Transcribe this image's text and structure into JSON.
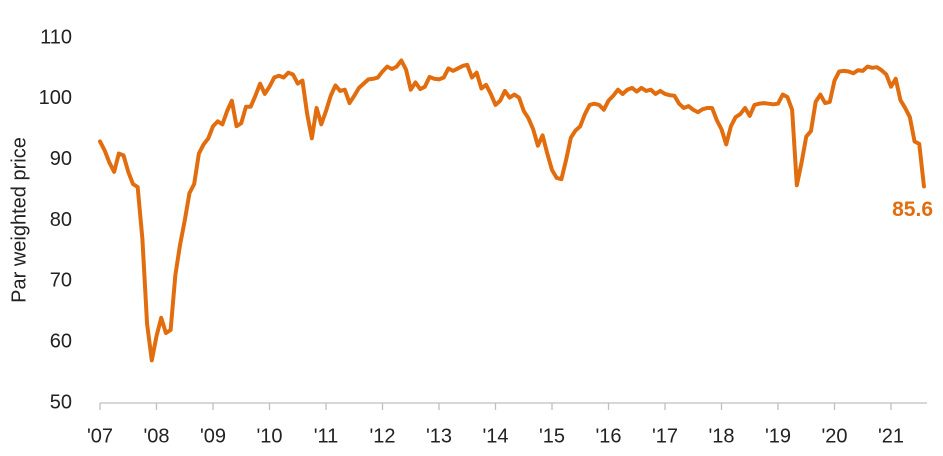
{
  "chart_data": {
    "type": "line",
    "y_label": "Par weighted price",
    "categories": [
      "'07",
      null,
      null,
      null,
      null,
      null,
      null,
      null,
      null,
      null,
      null,
      null,
      "'08",
      null,
      null,
      null,
      null,
      null,
      null,
      null,
      null,
      null,
      null,
      null,
      "'09",
      null,
      null,
      null,
      null,
      null,
      null,
      null,
      null,
      null,
      null,
      null,
      "'10",
      null,
      null,
      null,
      null,
      null,
      null,
      null,
      null,
      null,
      null,
      null,
      "'11",
      null,
      null,
      null,
      null,
      null,
      null,
      null,
      null,
      null,
      null,
      null,
      "'12",
      null,
      null,
      null,
      null,
      null,
      null,
      null,
      null,
      null,
      null,
      null,
      "'13",
      null,
      null,
      null,
      null,
      null,
      null,
      null,
      null,
      null,
      null,
      null,
      "'14",
      null,
      null,
      null,
      null,
      null,
      null,
      null,
      null,
      null,
      null,
      null,
      "'15",
      null,
      null,
      null,
      null,
      null,
      null,
      null,
      null,
      null,
      null,
      null,
      "'16",
      null,
      null,
      null,
      null,
      null,
      null,
      null,
      null,
      null,
      null,
      null,
      "'17",
      null,
      null,
      null,
      null,
      null,
      null,
      null,
      null,
      null,
      null,
      null,
      "'18",
      null,
      null,
      null,
      null,
      null,
      null,
      null,
      null,
      null,
      null,
      null,
      "'19",
      null,
      null,
      null,
      null,
      null,
      null,
      null,
      null,
      null,
      null,
      null,
      "'20",
      null,
      null,
      null,
      null,
      null,
      null,
      null,
      null,
      null,
      null,
      null,
      "'21",
      null,
      null,
      null,
      null,
      null,
      null,
      null
    ],
    "series": [
      {
        "name": "Par weighted price",
        "color": "#e26d0e",
        "values": [
          93,
          91.5,
          89.5,
          88,
          91,
          90.7,
          88,
          86,
          85.5,
          77,
          63,
          57,
          61,
          64,
          61.5,
          62,
          71,
          76,
          80,
          84.5,
          86,
          91,
          92.5,
          93.5,
          95.5,
          96.3,
          95.8,
          98,
          99.7,
          95.5,
          96,
          98.7,
          98.7,
          100.5,
          102.5,
          100.8,
          102,
          103.5,
          103.8,
          103.5,
          104.3,
          104,
          102.5,
          103,
          97.5,
          93.5,
          98.5,
          95.8,
          98,
          100.5,
          102.2,
          101.3,
          101.5,
          99.3,
          100.5,
          101.8,
          102.5,
          103.2,
          103.3,
          103.5,
          104.5,
          105.3,
          104.9,
          105.3,
          106.3,
          104.8,
          101.5,
          102.7,
          101.6,
          102,
          103.6,
          103.3,
          103.2,
          103.5,
          105,
          104.6,
          105,
          105.4,
          105.6,
          103.5,
          104.3,
          101.7,
          102.3,
          100.8,
          99,
          99.7,
          101.3,
          100.2,
          100.7,
          100.2,
          98,
          96.8,
          95,
          92.3,
          94,
          91,
          88.3,
          87,
          86.8,
          90,
          93.6,
          94.8,
          95.5,
          97.5,
          99,
          99.2,
          99,
          98.2,
          99.7,
          100.5,
          101.5,
          100.8,
          101.5,
          101.8,
          101.2,
          101.8,
          101.3,
          101.5,
          100.8,
          101.3,
          100.8,
          100.6,
          100.5,
          99.2,
          98.5,
          98.8,
          98.2,
          97.8,
          98.3,
          98.5,
          98.5,
          96.5,
          95,
          92.5,
          95.5,
          97,
          97.5,
          98.5,
          97.2,
          99,
          99.2,
          99.3,
          99.2,
          99.1,
          99.2,
          100.7,
          100.3,
          98.2,
          85.8,
          89.5,
          93.8,
          94.7,
          99.5,
          100.7,
          99.3,
          99.5,
          103,
          104.5,
          104.6,
          104.5,
          104.2,
          104.7,
          104.6,
          105.3,
          105.1,
          105.2,
          104.7,
          104,
          102,
          103.3,
          99.8,
          98.5,
          97,
          93,
          92.6,
          85.6
        ]
      }
    ],
    "ylim": [
      50,
      110
    ],
    "yticks": [
      50,
      60,
      70,
      80,
      90,
      100,
      110
    ],
    "grid": false
  }
}
